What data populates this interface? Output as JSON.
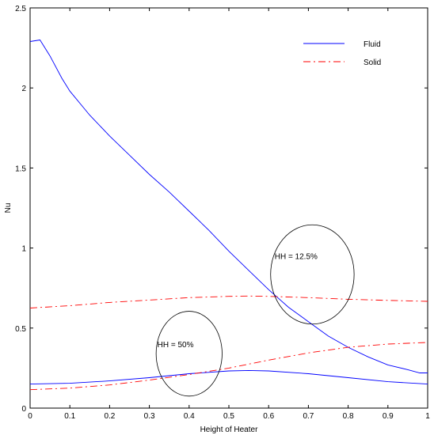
{
  "chart_data": {
    "type": "line",
    "title": "",
    "xlabel": "Height of Heater",
    "ylabel": "Nu",
    "xlim": [
      0,
      1
    ],
    "ylim": [
      0,
      2.5
    ],
    "xticks": [
      0,
      0.1,
      0.2,
      0.3,
      0.4,
      0.5,
      0.6,
      0.7,
      0.8,
      0.9,
      1
    ],
    "yticks": [
      0,
      0.5,
      1,
      1.5,
      2,
      2.5
    ],
    "xtick_labels": [
      "0",
      "0.1",
      "0.2",
      "0.3",
      "0.4",
      "0.5",
      "0.6",
      "0.7",
      "0.8",
      "0.9",
      "1"
    ],
    "ytick_labels": [
      "0",
      "0.5",
      "1",
      "1.5",
      "2",
      "2.5"
    ],
    "grid": false,
    "legend_position": "top-right",
    "legend": [
      {
        "label": "Fluid",
        "color": "#0000ff",
        "style": "solid"
      },
      {
        "label": "Solid",
        "color": "#ff0000",
        "style": "dashdot"
      }
    ],
    "series": [
      {
        "name": "Fluid",
        "group": "HH = 12.5%",
        "color": "#0000ff",
        "style": "solid",
        "x": [
          0,
          0.025,
          0.05,
          0.08,
          0.1,
          0.13,
          0.15,
          0.2,
          0.25,
          0.3,
          0.35,
          0.4,
          0.45,
          0.5,
          0.55,
          0.6,
          0.65,
          0.7,
          0.75,
          0.8,
          0.85,
          0.9,
          0.95,
          0.98,
          1.0
        ],
        "y": [
          2.29,
          2.3,
          2.2,
          2.06,
          1.98,
          1.89,
          1.83,
          1.7,
          1.58,
          1.46,
          1.35,
          1.23,
          1.11,
          0.98,
          0.86,
          0.74,
          0.63,
          0.54,
          0.45,
          0.38,
          0.32,
          0.27,
          0.24,
          0.22,
          0.22
        ]
      },
      {
        "name": "Solid",
        "group": "HH = 12.5%",
        "color": "#ff0000",
        "style": "dashdot",
        "x": [
          0,
          0.1,
          0.2,
          0.3,
          0.4,
          0.5,
          0.55,
          0.6,
          0.7,
          0.8,
          0.9,
          1.0
        ],
        "y": [
          0.625,
          0.64,
          0.66,
          0.675,
          0.69,
          0.698,
          0.7,
          0.698,
          0.69,
          0.68,
          0.673,
          0.667
        ]
      },
      {
        "name": "Fluid",
        "group": "HH = 50%",
        "color": "#0000ff",
        "style": "solid",
        "x": [
          0,
          0.1,
          0.2,
          0.3,
          0.4,
          0.5,
          0.55,
          0.6,
          0.7,
          0.8,
          0.9,
          1.0
        ],
        "y": [
          0.15,
          0.155,
          0.17,
          0.19,
          0.215,
          0.232,
          0.235,
          0.232,
          0.215,
          0.19,
          0.165,
          0.15
        ]
      },
      {
        "name": "Solid",
        "group": "HH = 50%",
        "color": "#ff0000",
        "style": "dashdot",
        "x": [
          0,
          0.1,
          0.2,
          0.3,
          0.4,
          0.5,
          0.6,
          0.7,
          0.8,
          0.9,
          1.0
        ],
        "y": [
          0.115,
          0.125,
          0.145,
          0.175,
          0.21,
          0.25,
          0.3,
          0.345,
          0.38,
          0.4,
          0.41
        ]
      }
    ],
    "annotations": [
      {
        "text": "HH = 12.5%",
        "x": 0.615,
        "y": 0.95,
        "ellipse": {
          "cx": 0.71,
          "cy": 0.835,
          "rx": 0.105,
          "ry": 0.31
        }
      },
      {
        "text": "HH = 50%",
        "x": 0.32,
        "y": 0.4,
        "ellipse": {
          "cx": 0.4,
          "cy": 0.34,
          "rx": 0.083,
          "ry": 0.265
        }
      }
    ]
  }
}
